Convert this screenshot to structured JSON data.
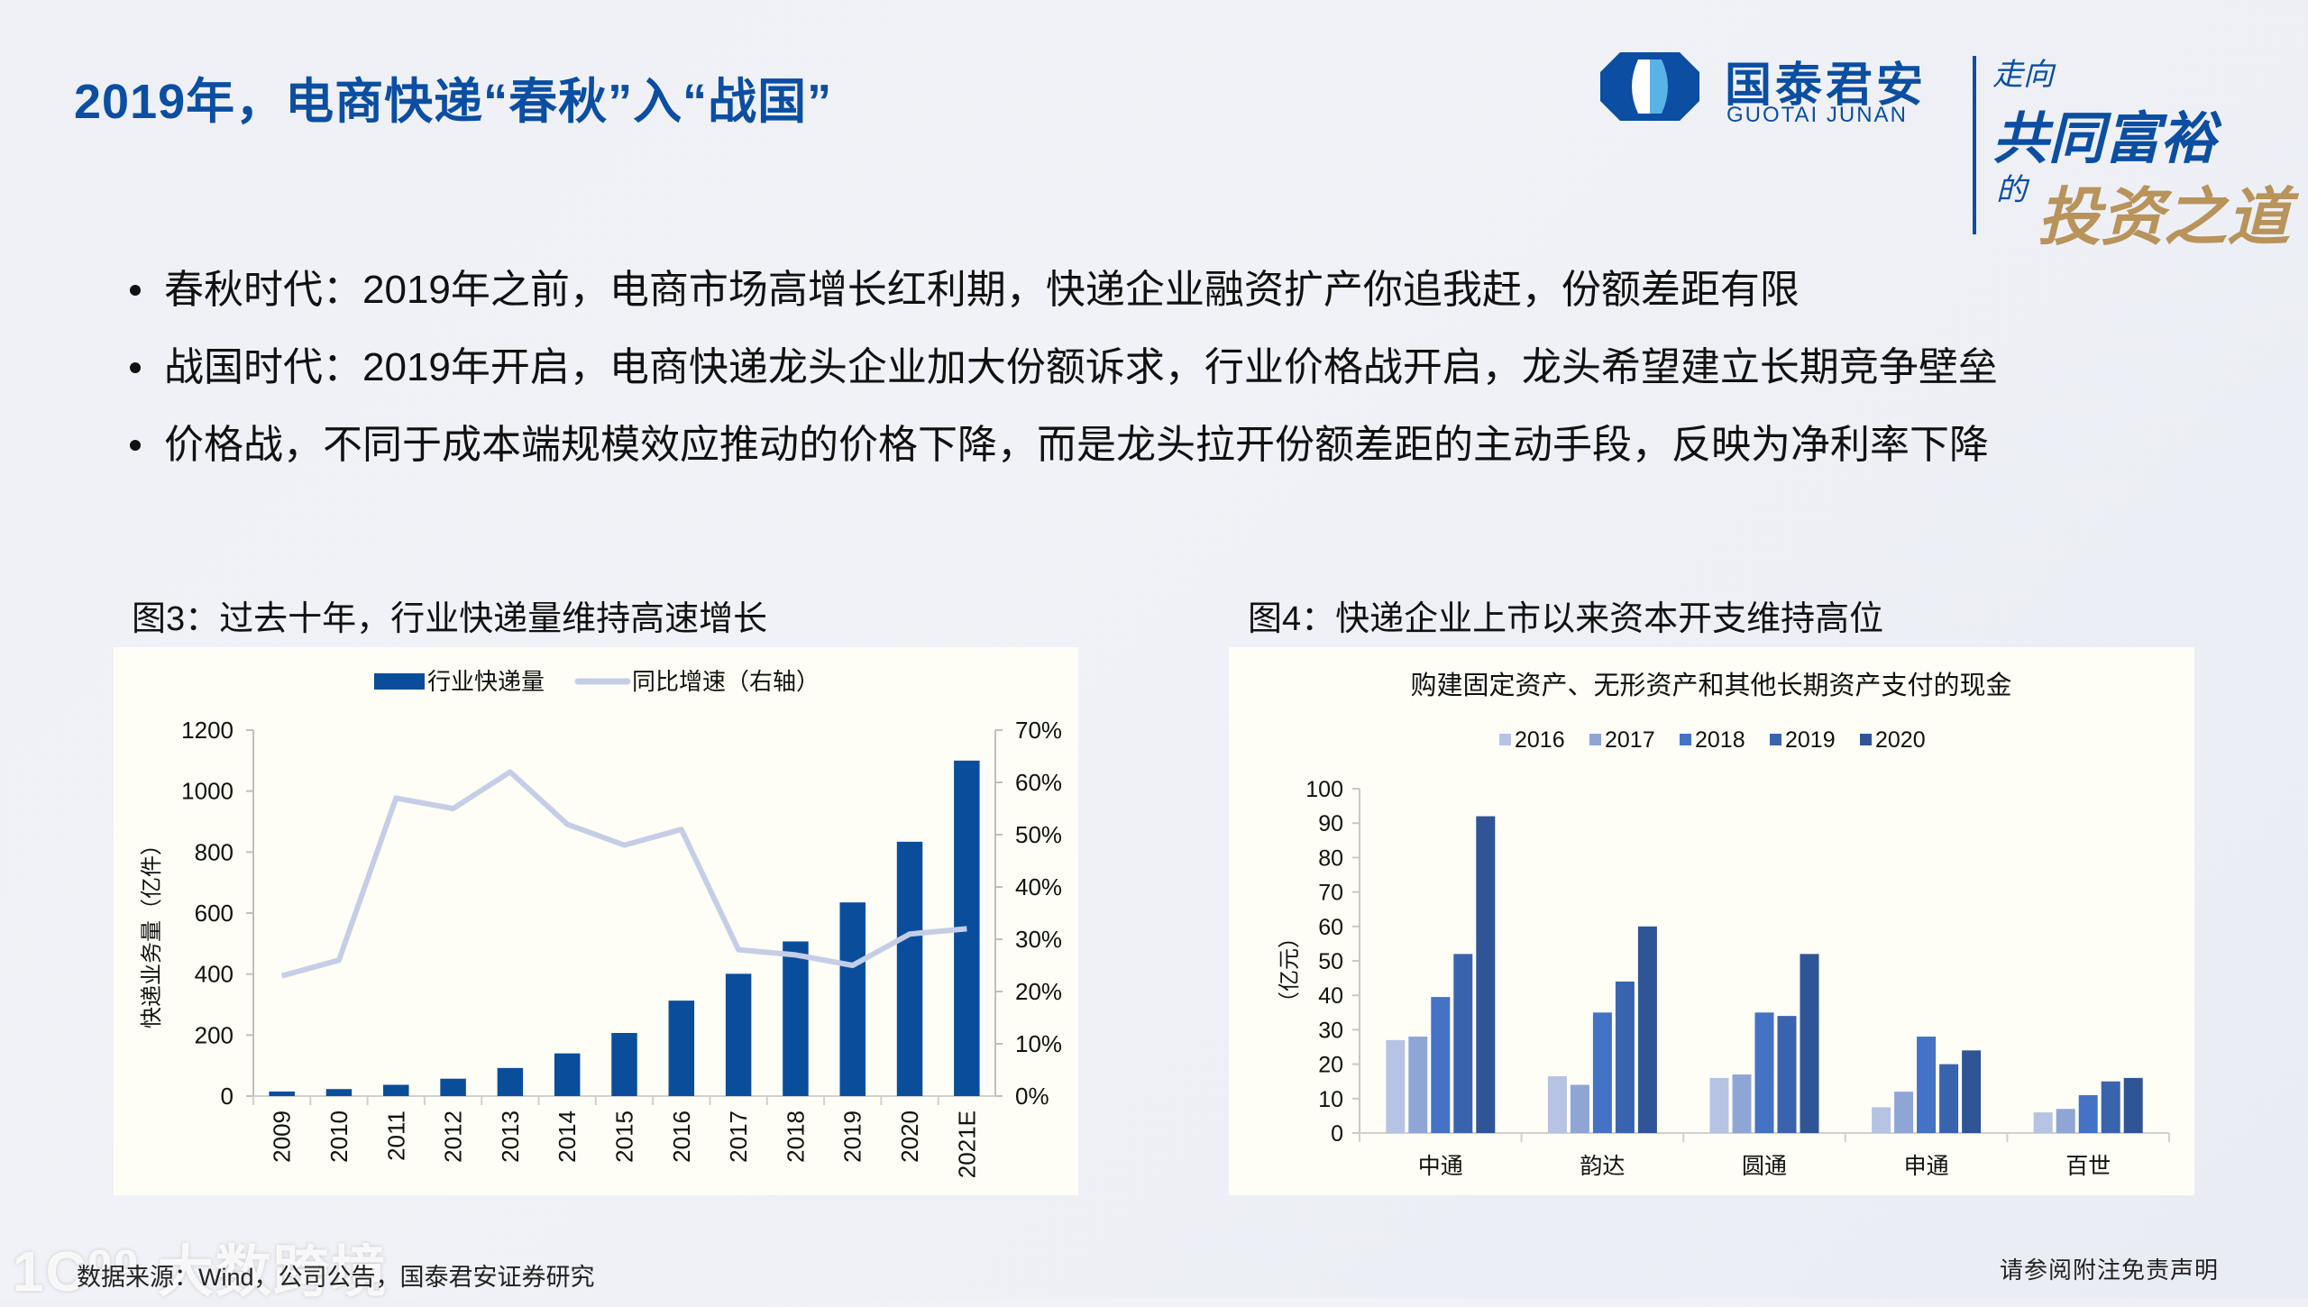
{
  "slide": {
    "title": "2019年，电商快递“春秋”入“战国”",
    "bullets": [
      "春秋时代：2019年之前，电商市场高增长红利期，快递企业融资扩产你追我赶，份额差距有限",
      "战国时代：2019年开启，电商快递龙头企业加大份额诉求，行业价格战开启，龙头希望建立长期竞争壁垒",
      "价格战，不同于成本端规模效应推动的价格下降，而是龙头拉开份额差距的主动手段，反映为净利率下降"
    ],
    "source": "数据来源：Wind，公司公告，国泰君安证券研究",
    "disclaimer": "请参阅附注免责声明",
    "watermark": "1C⁰⁰ 大数跨境"
  },
  "logo": {
    "name_cn": "国泰君安",
    "name_en": "GUOTAI JUNAN",
    "slogan_line1": "走向",
    "slogan_line2": "共同富裕",
    "slogan_line3a": "的",
    "slogan_line3b": "投资之道",
    "brand_color": "#0b4ea2",
    "gold_color": "#b8935a"
  },
  "chart_data": [
    {
      "id": "fig3",
      "caption": "图3：过去十年，行业快递量维持高速增长",
      "type": "bar+line",
      "title": "",
      "categories": [
        "2009",
        "2010",
        "2011",
        "2012",
        "2013",
        "2014",
        "2015",
        "2016",
        "2017",
        "2018",
        "2019",
        "2020",
        "2021E"
      ],
      "series": [
        {
          "name": "行业快递量",
          "type": "bar",
          "axis": "left",
          "color": "#0a4d9b",
          "values": [
            15,
            23,
            37,
            57,
            92,
            140,
            207,
            313,
            401,
            507,
            635,
            834,
            1100
          ]
        },
        {
          "name": "同比增速（右轴）",
          "type": "line",
          "axis": "right",
          "color": "#c5cee6",
          "values": [
            0.23,
            0.26,
            0.57,
            0.55,
            0.62,
            0.52,
            0.48,
            0.51,
            0.28,
            0.27,
            0.25,
            0.31,
            0.32
          ]
        }
      ],
      "ylabel": "快递业务量（亿件）",
      "ylim": [
        0,
        1200
      ],
      "yticks": [
        0,
        200,
        400,
        600,
        800,
        1000,
        1200
      ],
      "y2lim": [
        0,
        0.7
      ],
      "y2ticks": [
        "0%",
        "10%",
        "20%",
        "30%",
        "40%",
        "50%",
        "60%",
        "70%"
      ],
      "legend_position": "top",
      "grid": false
    },
    {
      "id": "fig4",
      "caption": "图4：快递企业上市以来资本开支维持高位",
      "type": "bar",
      "title": "购建固定资产、无形资产和其他长期资产支付的现金",
      "categories": [
        "中通",
        "韵达",
        "圆通",
        "申通",
        "百世"
      ],
      "series": [
        {
          "name": "2016",
          "color": "#b7c3e3",
          "values": [
            27,
            16.5,
            16,
            7.5,
            6
          ]
        },
        {
          "name": "2017",
          "color": "#8fa5d6",
          "values": [
            28,
            14,
            17,
            12,
            7
          ]
        },
        {
          "name": "2018",
          "color": "#4472c4",
          "values": [
            39.5,
            35,
            35,
            28,
            11
          ]
        },
        {
          "name": "2019",
          "color": "#3a63ad",
          "values": [
            52,
            44,
            34,
            20,
            15
          ]
        },
        {
          "name": "2020",
          "color": "#2f5597",
          "values": [
            92,
            60,
            52,
            24,
            16
          ]
        }
      ],
      "ylabel": "（亿元）",
      "ylim": [
        0,
        100
      ],
      "yticks": [
        0,
        10,
        20,
        30,
        40,
        50,
        60,
        70,
        80,
        90,
        100
      ],
      "legend_position": "top",
      "grid": false
    }
  ]
}
